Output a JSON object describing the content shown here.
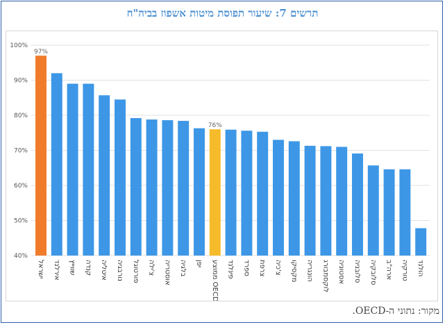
{
  "page": {
    "title": "תרשים 7: שיעור תפוסת מיטות אשפוז בביה\"ח",
    "source": "מקור: נתוני ה-OECD."
  },
  "chart_data": {
    "type": "bar",
    "title": "תרשים 7: שיעור תפוסת מיטות אשפוז בביה\"ח",
    "ylim": [
      40,
      100
    ],
    "yticks": [
      40,
      50,
      60,
      70,
      80,
      90,
      100
    ],
    "ytick_labels": [
      "40%",
      "50%",
      "60%",
      "70%",
      "80%",
      "90%",
      "100%"
    ],
    "grid": true,
    "legend": "none",
    "categories": [
      "ישראל",
      "אירלנד",
      "שווייץ",
      "קנדה",
      "איטליה",
      "נורבגיה",
      "פורטוגל",
      "צ'ילה",
      "אוסטריה",
      "בלגיה",
      "יפן",
      "ממוצע OECD",
      "פינלנד",
      "ספרד",
      "צרפת",
      "צ'כיה",
      "מקסיקו",
      "הונגריה",
      "לוקסמבורג",
      "אסטוניה",
      "סלובניה",
      "סלובקיה",
      "ארה\"ב",
      "טורקיה",
      "הולנד"
    ],
    "values": [
      97,
      92,
      89,
      89,
      85.7,
      84.5,
      79.2,
      78.8,
      78.6,
      78.4,
      76.3,
      76,
      75.9,
      75.6,
      75.3,
      73,
      72.6,
      71.3,
      71.2,
      71,
      69.1,
      65.7,
      64.6,
      64.6,
      47.8
    ],
    "data_labels": [
      {
        "index": 0,
        "label": "97%"
      },
      {
        "index": 11,
        "label": "76%"
      }
    ],
    "colors": {
      "default": "#3d97e6",
      "highlight_israel": "#f07c2b",
      "highlight_oecd": "#f6bb2a",
      "grid": "#e2e2e2",
      "axis_text": "#555555"
    },
    "highlights": {
      "0": "highlight_israel",
      "11": "highlight_oecd"
    }
  }
}
